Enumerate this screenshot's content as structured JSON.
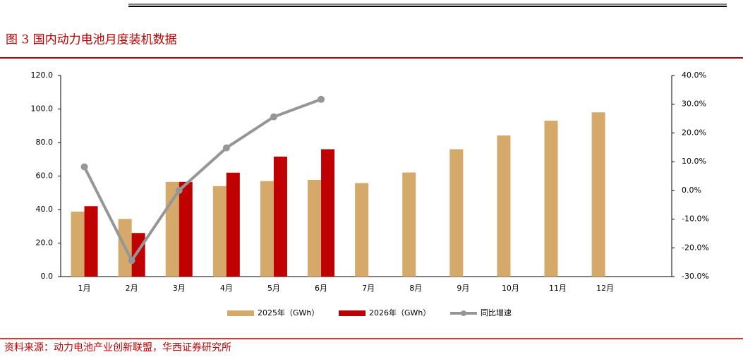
{
  "chart_data": {
    "type": "bar",
    "title": "图 3 国内动力电池月度装机数据",
    "source": "资料来源：动力电池产业创新联盟，华西证券研究所",
    "categories": [
      "1月",
      "2月",
      "3月",
      "4月",
      "5月",
      "6月",
      "7月",
      "8月",
      "9月",
      "10月",
      "11月",
      "12月"
    ],
    "series": [
      {
        "name": "2025年（GWh）",
        "type": "bar",
        "color": "#d4a96a",
        "values": [
          38.8,
          34.4,
          56.5,
          54.0,
          57.0,
          57.7,
          55.8,
          62.1,
          76.0,
          84.2,
          93.0,
          98.0
        ]
      },
      {
        "name": "2026年（GWh）",
        "type": "bar",
        "color": "#c00000",
        "values": [
          42.0,
          26.0,
          56.5,
          62.0,
          71.6,
          76.0,
          null,
          null,
          null,
          null,
          null,
          null
        ]
      },
      {
        "name": "同比增速",
        "type": "line",
        "axis": "y2",
        "color": "#969696",
        "values": [
          8.2,
          -24.4,
          0.0,
          14.8,
          25.6,
          31.7,
          null,
          null,
          null,
          null,
          null,
          null
        ]
      }
    ],
    "ylim": [
      0,
      120
    ],
    "yticks": [
      {
        "value": 0,
        "label": "0.0"
      },
      {
        "value": 20,
        "label": "20.0"
      },
      {
        "value": 40,
        "label": "40.0"
      },
      {
        "value": 60,
        "label": "60.0"
      },
      {
        "value": 80,
        "label": "80.0"
      },
      {
        "value": 100,
        "label": "100.0"
      },
      {
        "value": 120,
        "label": "120.0"
      }
    ],
    "y2lim": [
      -30,
      40
    ],
    "y2ticks": [
      {
        "value": -30,
        "label": "-30.0%"
      },
      {
        "value": -20,
        "label": "-20.0%"
      },
      {
        "value": -10,
        "label": "-10.0%"
      },
      {
        "value": 0,
        "label": "0.0%"
      },
      {
        "value": 10,
        "label": "10.0%"
      },
      {
        "value": 20,
        "label": "20.0%"
      },
      {
        "value": 30,
        "label": "30.0%"
      },
      {
        "value": 40,
        "label": "40.0%"
      }
    ],
    "grid": false,
    "legend": "bottom"
  }
}
